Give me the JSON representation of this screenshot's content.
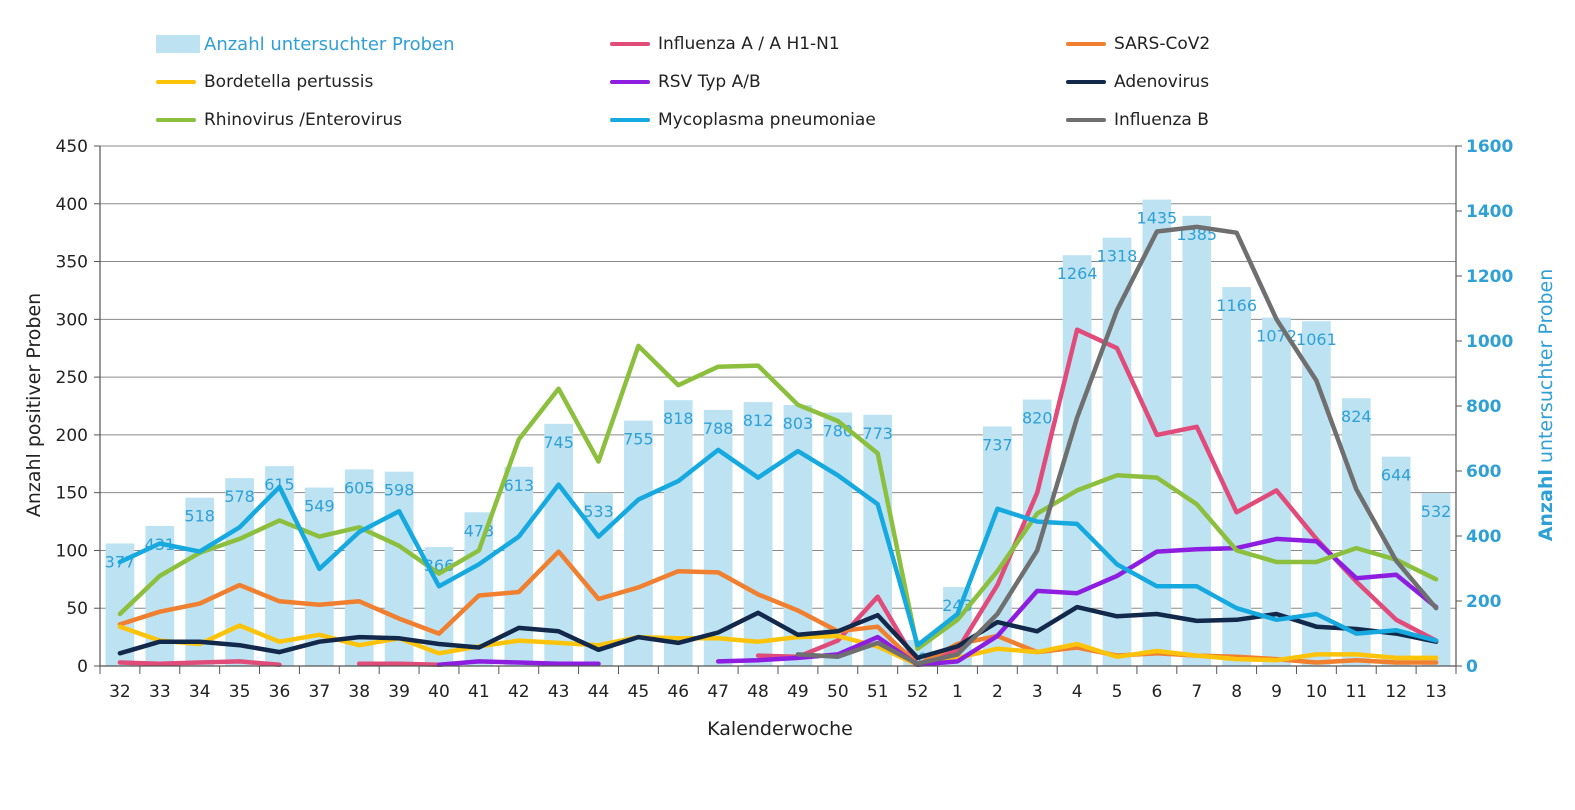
{
  "chart_data": {
    "type": "bar+line",
    "xlabel": "Kalenderwoche",
    "ylabel_left": "Anzahl positiver Proben",
    "ylabel_right": "Anzahl untersuchter Proben",
    "ylim_left": [
      0,
      450
    ],
    "yticks_left": [
      0,
      50,
      100,
      150,
      200,
      250,
      300,
      350,
      400,
      450
    ],
    "ylim_right": [
      0,
      1600
    ],
    "yticks_right": [
      0,
      200,
      400,
      600,
      800,
      1000,
      1200,
      1400,
      1600
    ],
    "grid": "horizontal",
    "legend_placement": "top",
    "categories": [
      "32",
      "33",
      "34",
      "35",
      "36",
      "37",
      "38",
      "39",
      "40",
      "41",
      "42",
      "43",
      "44",
      "45",
      "46",
      "47",
      "48",
      "49",
      "50",
      "51",
      "52",
      "1",
      "2",
      "3",
      "4",
      "5",
      "6",
      "7",
      "8",
      "9",
      "10",
      "11",
      "12",
      "13"
    ],
    "bars": {
      "name": "Anzahl untersuchter Proben",
      "axis": "right",
      "color": "#bde3f3",
      "label_color": "#2fa0d6",
      "values": [
        377,
        431,
        518,
        578,
        615,
        549,
        605,
        598,
        366,
        473,
        613,
        745,
        533,
        755,
        818,
        788,
        812,
        803,
        780,
        773,
        80,
        243,
        737,
        820,
        1264,
        1318,
        1435,
        1385,
        1166,
        1072,
        1061,
        824,
        644,
        532
      ]
    },
    "series": [
      {
        "name": "Influenza A / A H1-N1",
        "color": "#e04b7a",
        "axis": "left",
        "values": [
          3,
          2,
          3,
          4,
          1,
          null,
          2,
          2,
          1,
          null,
          null,
          null,
          null,
          null,
          null,
          null,
          9,
          8,
          22,
          60,
          1,
          14,
          70,
          150,
          291,
          275,
          200,
          207,
          133,
          152,
          110,
          73,
          40,
          22
        ]
      },
      {
        "name": "SARS-CoV2",
        "color": "#f07f2f",
        "axis": "left",
        "values": [
          36,
          47,
          54,
          70,
          56,
          53,
          56,
          41,
          28,
          61,
          64,
          99,
          58,
          68,
          82,
          81,
          62,
          48,
          30,
          34,
          1,
          19,
          26,
          12,
          16,
          9,
          11,
          9,
          8,
          6,
          3,
          5,
          3,
          3
        ]
      },
      {
        "name": "Bordetella pertussis",
        "color": "#fcc30b",
        "axis": "left",
        "values": [
          34,
          22,
          19,
          35,
          21,
          27,
          18,
          24,
          11,
          17,
          22,
          20,
          18,
          25,
          24,
          24,
          21,
          25,
          26,
          17,
          1,
          7,
          15,
          12,
          19,
          8,
          13,
          9,
          6,
          5,
          10,
          10,
          7,
          7
        ]
      },
      {
        "name": "RSV Typ A/B",
        "color": "#8d1ee0",
        "axis": "left",
        "values": [
          null,
          null,
          null,
          null,
          null,
          null,
          null,
          null,
          1,
          4,
          3,
          2,
          2,
          null,
          null,
          4,
          5,
          7,
          10,
          25,
          1,
          4,
          26,
          65,
          63,
          78,
          99,
          101,
          102,
          110,
          108,
          76,
          79,
          51
        ]
      },
      {
        "name": "Adenovirus",
        "color": "#13294b",
        "axis": "left",
        "values": [
          11,
          21,
          21,
          18,
          12,
          21,
          25,
          24,
          19,
          16,
          33,
          30,
          14,
          25,
          20,
          29,
          46,
          27,
          30,
          44,
          7,
          17,
          38,
          30,
          51,
          43,
          45,
          39,
          40,
          45,
          34,
          32,
          28,
          21
        ]
      },
      {
        "name": "Rhinovirus /Enterovirus",
        "color": "#8dbf3e",
        "axis": "left",
        "values": [
          45,
          78,
          98,
          110,
          126,
          112,
          120,
          104,
          80,
          100,
          196,
          240,
          177,
          277,
          243,
          259,
          260,
          226,
          212,
          184,
          15,
          40,
          82,
          132,
          152,
          165,
          163,
          140,
          100,
          90,
          90,
          102,
          92,
          75
        ]
      },
      {
        "name": "Mycoplasma pneumoniae",
        "color": "#16a9e0",
        "axis": "left",
        "values": [
          90,
          106,
          99,
          120,
          155,
          84,
          116,
          134,
          69,
          88,
          112,
          157,
          112,
          144,
          160,
          187,
          163,
          186,
          165,
          140,
          18,
          45,
          136,
          125,
          123,
          88,
          69,
          69,
          50,
          40,
          45,
          28,
          31,
          22
        ]
      },
      {
        "name": "Influenza B",
        "color": "#6f6f6f",
        "axis": "left",
        "values": [
          null,
          null,
          null,
          null,
          null,
          null,
          null,
          null,
          null,
          null,
          null,
          null,
          null,
          null,
          null,
          null,
          null,
          10,
          8,
          20,
          2,
          10,
          45,
          100,
          215,
          308,
          376,
          380,
          375,
          300,
          247,
          153,
          91,
          50
        ]
      }
    ]
  }
}
